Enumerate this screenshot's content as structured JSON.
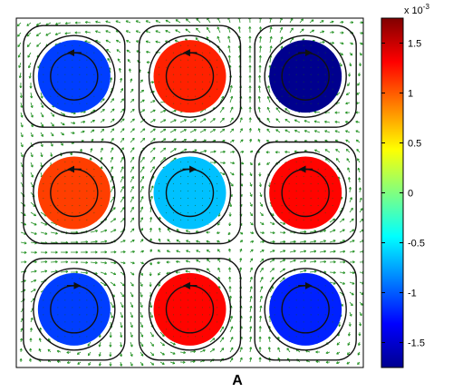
{
  "chart_data": {
    "type": "heatmap",
    "panel_label": "A",
    "colorbar": {
      "exponent_label": "x 10",
      "exponent_power": "-3",
      "range": [
        -1.75,
        1.75
      ],
      "ticks": [
        1.5,
        1,
        0.5,
        0,
        -0.5,
        -1,
        -1.5
      ],
      "tick_labels": [
        "1.5",
        "1",
        "0.5",
        "0",
        "-0.5",
        "-1",
        "-1.5"
      ],
      "colormap": "jet"
    },
    "grid": {
      "rows": 3,
      "cols": 3
    },
    "cells": [
      {
        "row": 0,
        "col": 0,
        "value": -1.1,
        "rotation": "counterclockwise"
      },
      {
        "row": 0,
        "col": 1,
        "value": 1.2,
        "rotation": "counterclockwise"
      },
      {
        "row": 0,
        "col": 2,
        "value": -1.7,
        "rotation": "clockwise"
      },
      {
        "row": 1,
        "col": 0,
        "value": 1.1,
        "rotation": "counterclockwise"
      },
      {
        "row": 1,
        "col": 1,
        "value": -0.65,
        "rotation": "clockwise"
      },
      {
        "row": 1,
        "col": 2,
        "value": 1.3,
        "rotation": "counterclockwise"
      },
      {
        "row": 2,
        "col": 0,
        "value": -1.1,
        "rotation": "clockwise"
      },
      {
        "row": 2,
        "col": 1,
        "value": 1.3,
        "rotation": "counterclockwise"
      },
      {
        "row": 2,
        "col": 2,
        "value": -1.2,
        "rotation": "clockwise"
      }
    ],
    "vector_field_color": "#1f8f1f",
    "streamline_color": "#111111"
  }
}
